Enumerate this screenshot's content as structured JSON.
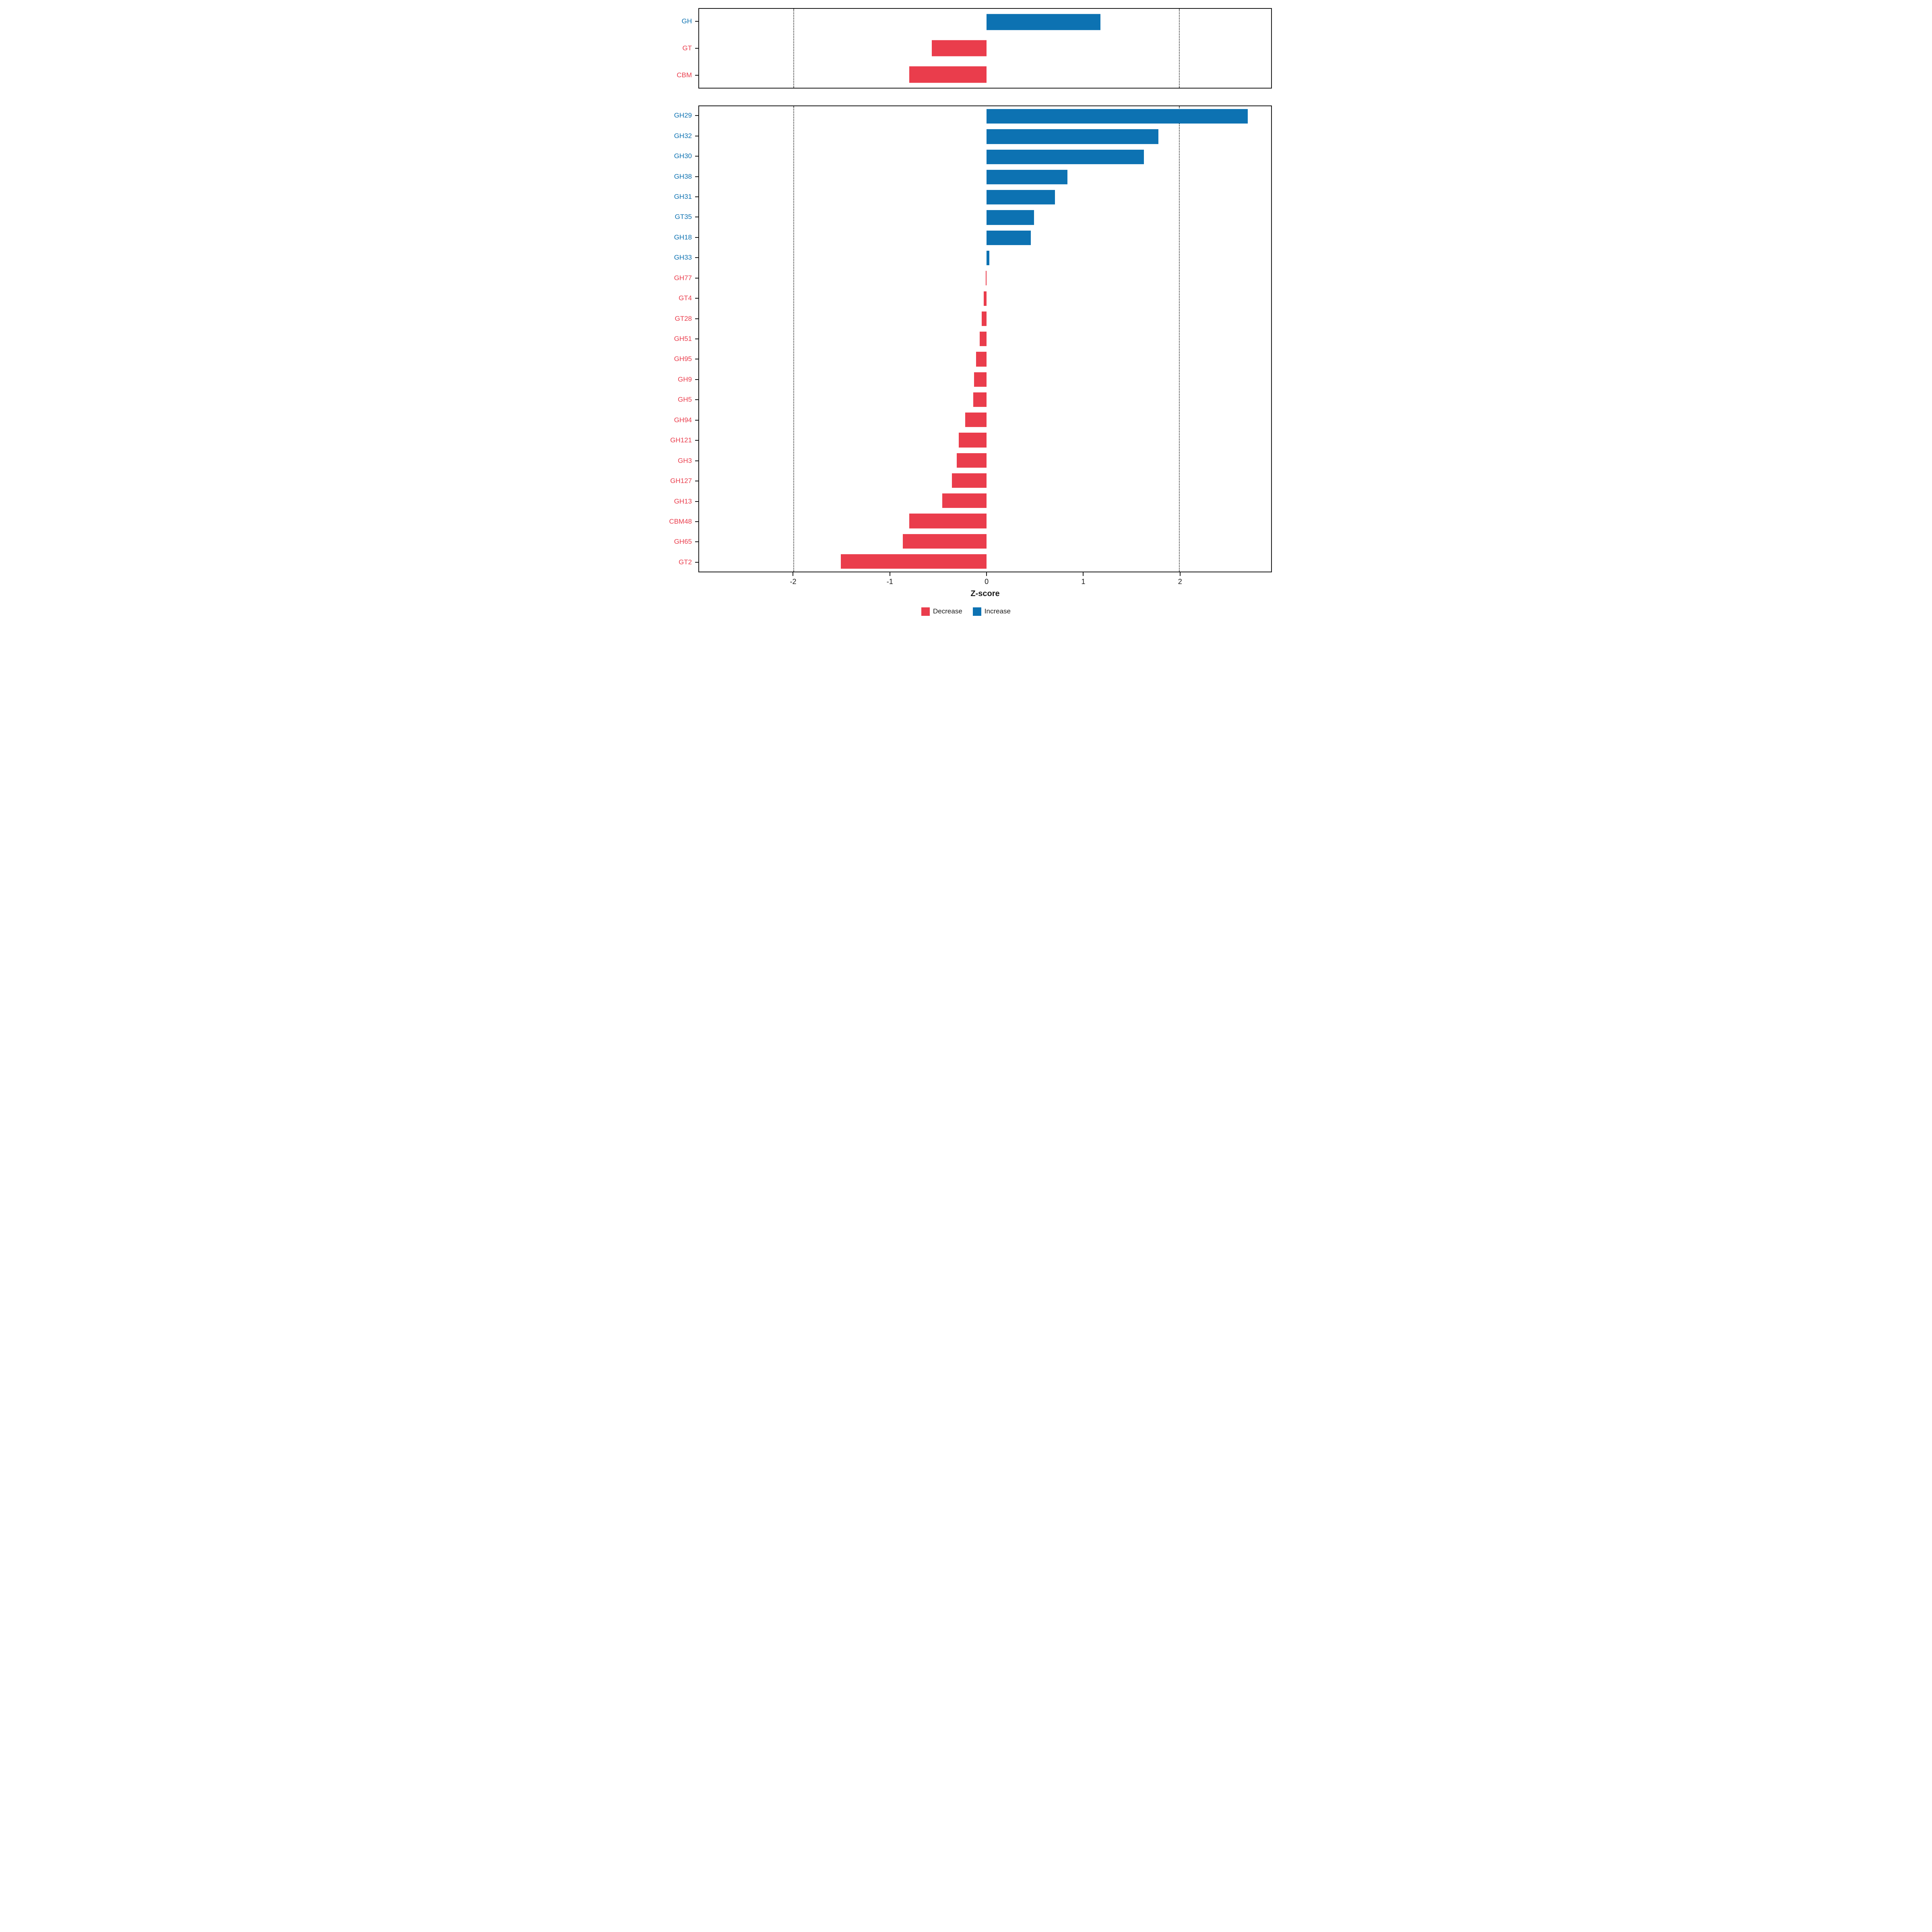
{
  "chart_data": {
    "type": "bar",
    "orientation": "horizontal",
    "title": "",
    "xlabel": "Z-score",
    "ylabel": "",
    "xlim": [
      -2.98,
      2.95
    ],
    "x_ticks": [
      -2,
      -1,
      0,
      1,
      2
    ],
    "x_tick_labels": [
      "-2",
      "-1",
      "0",
      "1",
      "2"
    ],
    "dotted_gridlines": [
      -2,
      2
    ],
    "grid": "dotted vertical lines at -2 and 2 only",
    "legend_position": "bottom center",
    "colors": {
      "increase": "#0d72b2",
      "decrease": "#ea3d4c"
    },
    "legend": [
      {
        "label": "Decrease",
        "color": "#ea3d4c"
      },
      {
        "label": "Increase",
        "color": "#0d72b2"
      }
    ],
    "panels": [
      {
        "name": "family-summary",
        "categories": [
          "GH",
          "GT",
          "CBM"
        ],
        "values": [
          1.18,
          -0.57,
          -0.8
        ]
      },
      {
        "name": "family-detail",
        "categories": [
          "GH29",
          "GH32",
          "GH30",
          "GH38",
          "GH31",
          "GT35",
          "GH18",
          "GH33",
          "GH77",
          "GT4",
          "GT28",
          "GH51",
          "GH95",
          "GH9",
          "GH5",
          "GH94",
          "GH121",
          "GH3",
          "GH127",
          "GH13",
          "CBM48",
          "GH65",
          "GT2"
        ],
        "values": [
          2.71,
          1.78,
          1.63,
          0.84,
          0.71,
          0.49,
          0.46,
          0.03,
          -0.01,
          -0.03,
          -0.05,
          -0.07,
          -0.11,
          -0.13,
          -0.14,
          -0.22,
          -0.29,
          -0.31,
          -0.36,
          -0.46,
          -0.8,
          -0.87,
          -1.51
        ]
      }
    ]
  }
}
